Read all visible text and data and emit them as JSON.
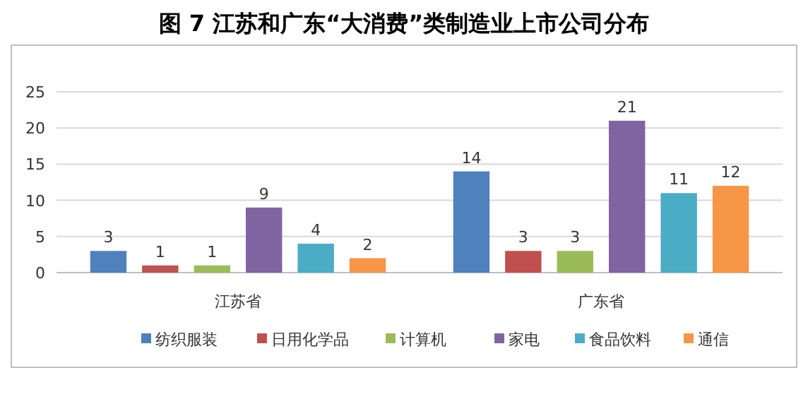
{
  "chart_data": {
    "type": "bar",
    "title": "图 7  江苏和广东“大消费”类制造业上市公司分布",
    "categories": [
      "江苏省",
      "广东省"
    ],
    "series": [
      {
        "name": "纺织服装",
        "color": "#4f81bd",
        "values": [
          3,
          14
        ]
      },
      {
        "name": "日用化学品",
        "color": "#c0504d",
        "values": [
          1,
          3
        ]
      },
      {
        "name": "计算机",
        "color": "#9bbb59",
        "values": [
          1,
          3
        ]
      },
      {
        "name": "家电",
        "color": "#8064a2",
        "values": [
          9,
          21
        ]
      },
      {
        "name": "食品饮料",
        "color": "#4bacc6",
        "values": [
          4,
          11
        ]
      },
      {
        "name": "通信",
        "color": "#f79646",
        "values": [
          2,
          12
        ]
      }
    ],
    "ylim": [
      0,
      25
    ],
    "yticks": [
      0,
      5,
      10,
      15,
      20,
      25
    ],
    "grid": "y",
    "legend": "bottom",
    "data_labels": true
  }
}
